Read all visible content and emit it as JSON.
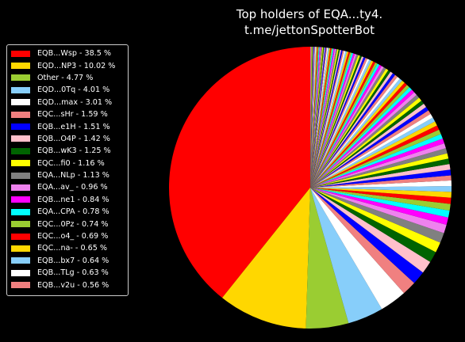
{
  "chart_data": {
    "type": "pie",
    "title_lines": [
      "Top holders of EQA...ty4.",
      "t.me/jettonSpotterBot"
    ],
    "start_angle_deg": 90,
    "direction": "counterclockwise",
    "legend_position": "left",
    "slices": [
      {
        "label": "EQB...Wsp - 38.5 %",
        "value": 38.5,
        "color": "#ff0000"
      },
      {
        "label": "EQD...NP3 - 10.02 %",
        "value": 10.02,
        "color": "#ffd700"
      },
      {
        "label": "Other - 4.77 %",
        "value": 4.77,
        "color": "#9acd32"
      },
      {
        "label": "EQD...0Tq - 4.01 %",
        "value": 4.01,
        "color": "#87cefa"
      },
      {
        "label": "EQD...max - 3.01 %",
        "value": 3.01,
        "color": "#ffffff"
      },
      {
        "label": "EQC...sHr - 1.59 %",
        "value": 1.59,
        "color": "#f08080"
      },
      {
        "label": "EQB...e1H - 1.51 %",
        "value": 1.51,
        "color": "#0000ff"
      },
      {
        "label": "EQB...O4P - 1.42 %",
        "value": 1.42,
        "color": "#ffc0cb"
      },
      {
        "label": "EQB...wK3 - 1.25 %",
        "value": 1.25,
        "color": "#006400"
      },
      {
        "label": "EQC...fi0 - 1.16 %",
        "value": 1.16,
        "color": "#ffff00"
      },
      {
        "label": "EQA...NLp - 1.13 %",
        "value": 1.13,
        "color": "#808080"
      },
      {
        "label": "EQA...av_ - 0.96 %",
        "value": 0.96,
        "color": "#ee82ee"
      },
      {
        "label": "EQB...ne1 - 0.84 %",
        "value": 0.84,
        "color": "#ff00ff"
      },
      {
        "label": "EQA...CPA - 0.78 %",
        "value": 0.78,
        "color": "#00ffff"
      },
      {
        "label": "EQC...0Pz - 0.74 %",
        "value": 0.74,
        "color": "#9acd32"
      },
      {
        "label": "EQC...o4_ - 0.69 %",
        "value": 0.69,
        "color": "#ff0000"
      },
      {
        "label": "EQC...na- - 0.65 %",
        "value": 0.65,
        "color": "#ffd700"
      },
      {
        "label": "EQB...bx7 - 0.64 %",
        "value": 0.64,
        "color": "#87cefa"
      },
      {
        "label": "EQB...TLg - 0.63 %",
        "value": 0.63,
        "color": "#ffffff"
      },
      {
        "label": "EQB...v2u - 0.56 %",
        "value": 0.56,
        "color": "#f08080"
      }
    ],
    "remaining_holders": {
      "total_percent": 23.14,
      "approx_count": 90,
      "color_cycle": [
        "#0000ff",
        "#ffc0cb",
        "#006400",
        "#ffff00",
        "#808080",
        "#ee82ee",
        "#ff00ff",
        "#00ffff",
        "#9acd32",
        "#ff0000",
        "#ffd700",
        "#87cefa",
        "#ffffff",
        "#f08080"
      ]
    }
  }
}
